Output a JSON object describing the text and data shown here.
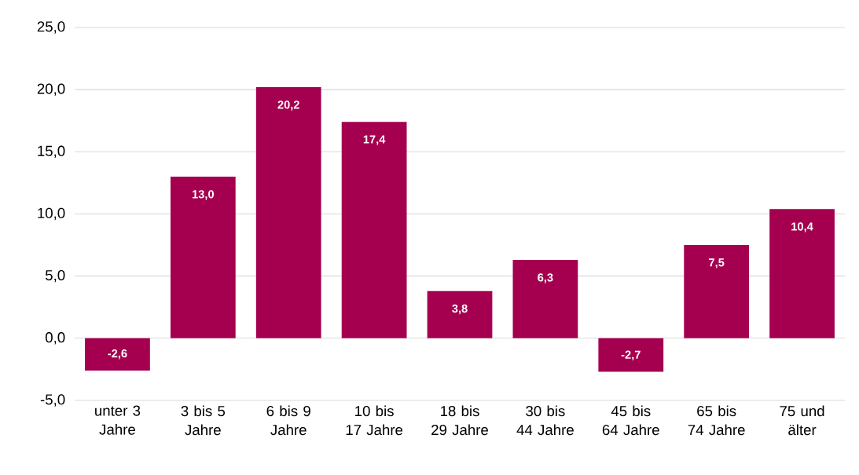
{
  "chart_data": {
    "type": "bar",
    "categories": [
      "unter 3 Jahre",
      "3 bis 5 Jahre",
      "6 bis 9 Jahre",
      "10 bis 17 Jahre",
      "18 bis 29 Jahre",
      "30 bis 44 Jahre",
      "45 bis 64 Jahre",
      "65 bis 74 Jahre",
      "75 und älter"
    ],
    "values": [
      -2.6,
      13.0,
      20.2,
      17.4,
      3.8,
      6.3,
      -2.7,
      7.5,
      10.4
    ],
    "value_labels": [
      "-2,6",
      "13,0",
      "20,2",
      "17,4",
      "3,8",
      "6,3",
      "-2,7",
      "7,5",
      "10,4"
    ],
    "color": "#a50050",
    "ylim": [
      -5,
      25
    ],
    "yticks": [
      {
        "value": -5,
        "label": "-5,0"
      },
      {
        "value": 0,
        "label": "0,0"
      },
      {
        "value": 5,
        "label": "5,0"
      },
      {
        "value": 10,
        "label": "10,0"
      },
      {
        "value": 15,
        "label": "15,0"
      },
      {
        "value": 20,
        "label": "20,0"
      },
      {
        "value": 25,
        "label": "25,0"
      }
    ],
    "grid": "y"
  }
}
